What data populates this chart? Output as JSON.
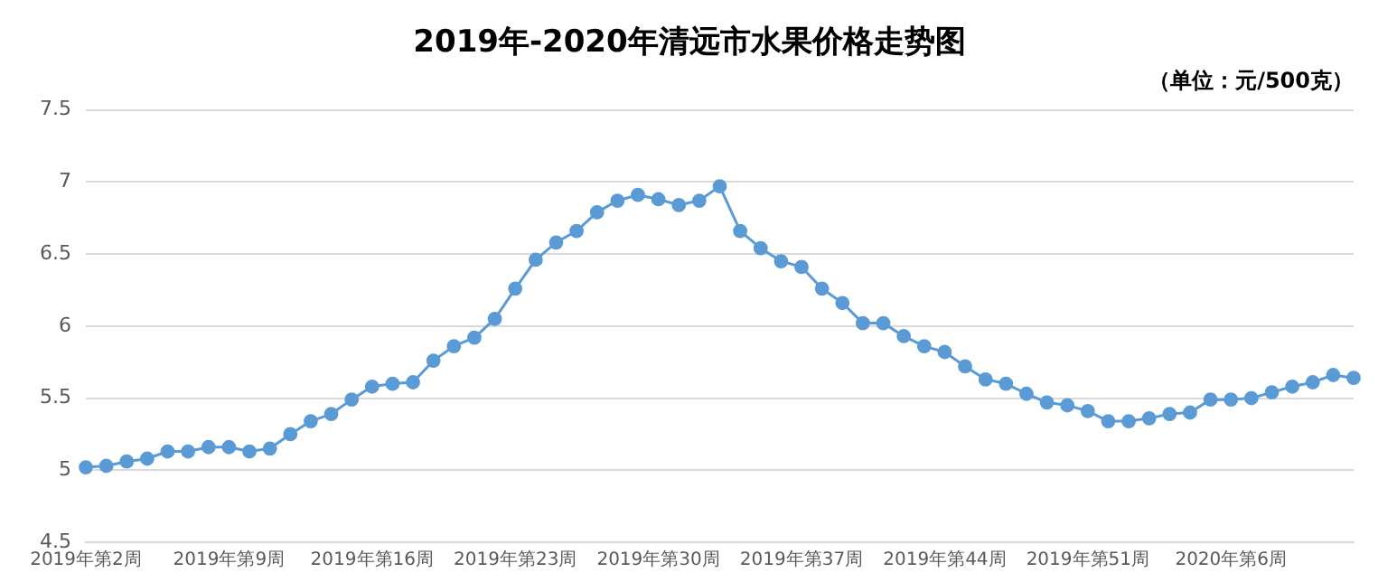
{
  "chart_data": {
    "type": "line",
    "title": "2019年-2020年清远市水果价格走势图",
    "subtitle": "（单位：元/500克）",
    "categories": [
      "2019年第2周",
      null,
      null,
      null,
      null,
      null,
      null,
      "2019年第9周",
      null,
      null,
      null,
      null,
      null,
      null,
      "2019年第16周",
      null,
      null,
      null,
      null,
      null,
      null,
      "2019年第23周",
      null,
      null,
      null,
      null,
      null,
      null,
      "2019年第30周",
      null,
      null,
      null,
      null,
      null,
      null,
      "2019年第37周",
      null,
      null,
      null,
      null,
      null,
      null,
      "2019年第44周",
      null,
      null,
      null,
      null,
      null,
      null,
      "2019年第51周",
      null,
      null,
      null,
      null,
      null,
      null,
      "2020年第6周",
      null,
      null,
      null,
      null,
      null,
      null
    ],
    "series": [
      {
        "color": "#5b9bd5",
        "values": [
          5.02,
          5.03,
          5.06,
          5.08,
          5.13,
          5.13,
          5.16,
          5.16,
          5.13,
          5.15,
          5.25,
          5.34,
          5.39,
          5.49,
          5.58,
          5.6,
          5.61,
          5.76,
          5.86,
          5.92,
          6.05,
          6.26,
          6.46,
          6.58,
          6.66,
          6.79,
          6.87,
          6.91,
          6.88,
          6.84,
          6.87,
          6.97,
          6.66,
          6.54,
          6.45,
          6.41,
          6.26,
          6.16,
          6.02,
          6.02,
          5.93,
          5.86,
          5.82,
          5.72,
          5.63,
          5.6,
          5.53,
          5.47,
          5.45,
          5.41,
          5.34,
          5.34,
          5.36,
          5.39,
          5.4,
          5.49,
          5.49,
          5.5,
          5.54,
          5.58,
          5.61,
          5.66,
          5.64
        ]
      }
    ],
    "ylim": [
      4.5,
      7.5
    ],
    "yticks": [
      4.5,
      5,
      5.5,
      6,
      6.5,
      7,
      7.5
    ],
    "grid": "y",
    "legend": false,
    "marker": "circle",
    "line_style": "solid"
  }
}
